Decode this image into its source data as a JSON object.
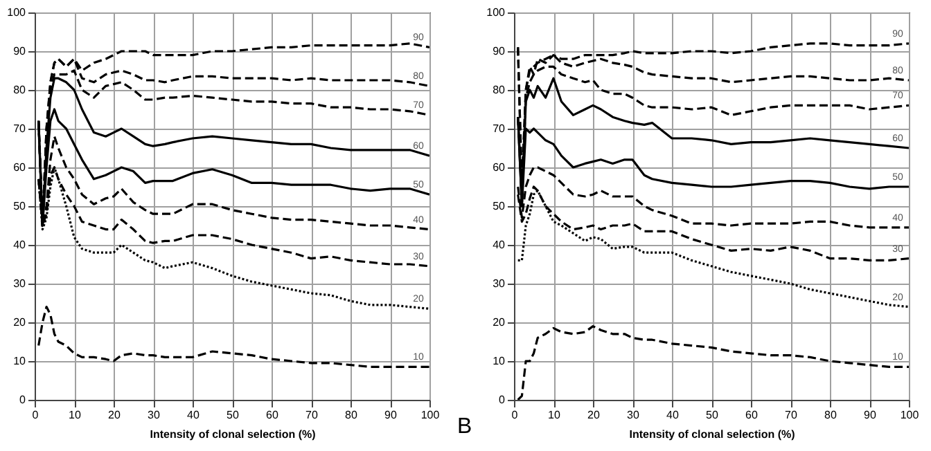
{
  "chart_data": [
    {
      "type": "line",
      "xlabel": "Intensity of clonal selection (%)",
      "x": [
        1,
        2,
        3,
        4,
        5,
        6,
        8,
        10,
        12,
        15,
        18,
        20,
        22,
        25,
        28,
        30,
        33,
        35,
        40,
        45,
        50,
        55,
        60,
        65,
        70,
        75,
        80,
        85,
        90,
        95,
        100
      ],
      "xlim": [
        0,
        100
      ],
      "ylim": [
        0,
        100
      ],
      "xticks": [
        0,
        10,
        20,
        30,
        40,
        50,
        60,
        70,
        80,
        90,
        100
      ],
      "yticks": [
        0,
        10,
        20,
        30,
        40,
        50,
        60,
        70,
        80,
        90,
        100
      ],
      "grid": true,
      "legend": false,
      "marker": "none",
      "series": [
        {
          "name": "90",
          "color": "#000000",
          "line_style": "dashed",
          "values": [
            72,
            45,
            70,
            82,
            87,
            88,
            86,
            88,
            85,
            87,
            88,
            89,
            90,
            90,
            90,
            89,
            89,
            89,
            89,
            90,
            90,
            90.5,
            91,
            91,
            91.5,
            91.5,
            91.5,
            91.5,
            91.5,
            92,
            91
          ]
        },
        {
          "name": "80",
          "color": "#000000",
          "line_style": "dashed",
          "values": [
            72,
            45,
            70,
            82,
            87,
            88,
            86,
            88,
            83,
            82,
            84,
            84.5,
            85,
            84,
            82.5,
            82.5,
            82,
            82.5,
            83.5,
            83.5,
            83,
            83,
            83,
            82.5,
            83,
            82.5,
            82.5,
            82.5,
            82.5,
            82,
            81
          ]
        },
        {
          "name": "70",
          "color": "#000000",
          "line_style": "dashed",
          "values": [
            72,
            45,
            68,
            80,
            84,
            84,
            84,
            85,
            80,
            78,
            81,
            81.5,
            82,
            80,
            77.5,
            77.5,
            78,
            78,
            78.5,
            78,
            77.5,
            77,
            77,
            76.5,
            76.5,
            75.5,
            75.5,
            75,
            75,
            74.5,
            73.5
          ]
        },
        {
          "name": "60",
          "color": "#000000",
          "line_style": "solid",
          "values": [
            72,
            45,
            65,
            78,
            83,
            83,
            82,
            80,
            75,
            69,
            68,
            69,
            70,
            68,
            66,
            65.5,
            66,
            66.5,
            67.5,
            68,
            67.5,
            67,
            66.5,
            66,
            66,
            65,
            64.5,
            64.5,
            64.5,
            64.5,
            63
          ]
        },
        {
          "name": "50",
          "color": "#000000",
          "line_style": "solid",
          "values": [
            71,
            45,
            60,
            72,
            75,
            72,
            70,
            66,
            62,
            57,
            58,
            59,
            60,
            59,
            56,
            56.5,
            56.5,
            56.5,
            58.5,
            59.5,
            58,
            56,
            56,
            55.5,
            55.5,
            55.5,
            54.5,
            54,
            54.5,
            54.5,
            53
          ]
        },
        {
          "name": "40",
          "color": "#000000",
          "line_style": "dashed",
          "values": [
            57,
            45,
            50,
            62,
            68,
            65,
            60,
            57,
            53,
            50.5,
            52,
            52.5,
            54.5,
            51,
            49,
            48,
            48,
            48,
            50.5,
            50.5,
            49,
            48,
            47,
            46.5,
            46.5,
            46,
            45.5,
            45,
            45,
            44.5,
            44
          ]
        },
        {
          "name": "30",
          "color": "#000000",
          "line_style": "dashed",
          "values": [
            57,
            45,
            48,
            58,
            60,
            57,
            53,
            50,
            46,
            45,
            44,
            44,
            46.5,
            44,
            41,
            40.5,
            41,
            41,
            42.5,
            42.5,
            41.5,
            40,
            39,
            38,
            36.5,
            37,
            36,
            35.5,
            35,
            35,
            34.5
          ]
        },
        {
          "name": "20",
          "color": "#000000",
          "line_style": "dotted",
          "values": [
            57,
            44,
            47,
            55,
            60,
            57,
            50,
            42,
            39,
            38,
            38,
            38,
            40,
            38,
            36,
            35.5,
            34,
            34.5,
            35.5,
            34,
            32,
            30.5,
            29.5,
            28.5,
            27.5,
            27,
            25.5,
            24.5,
            24.5,
            24,
            23.5
          ]
        },
        {
          "name": "10",
          "color": "#000000",
          "line_style": "dashed",
          "values": [
            14,
            20,
            24,
            22,
            17,
            15,
            14,
            12,
            11,
            11,
            10.5,
            10,
            11.5,
            12,
            11.5,
            11.5,
            11,
            11,
            11,
            12.5,
            12,
            11.5,
            10.5,
            10,
            9.5,
            9.5,
            9,
            8.5,
            8.5,
            8.5,
            8.5
          ]
        }
      ]
    },
    {
      "type": "line",
      "xlabel": "Intensity of clonal selection (%)",
      "annotations": [
        "B"
      ],
      "x": [
        1,
        2,
        3,
        4,
        5,
        6,
        8,
        10,
        12,
        15,
        18,
        20,
        22,
        25,
        28,
        30,
        33,
        35,
        40,
        45,
        50,
        55,
        60,
        65,
        70,
        75,
        80,
        85,
        90,
        95,
        100
      ],
      "xlim": [
        0,
        100
      ],
      "ylim": [
        0,
        100
      ],
      "xticks": [
        0,
        10,
        20,
        30,
        40,
        50,
        60,
        70,
        80,
        90,
        100
      ],
      "yticks": [
        0,
        10,
        20,
        30,
        40,
        50,
        60,
        70,
        80,
        90,
        100
      ],
      "grid": true,
      "legend": false,
      "marker": "none",
      "series": [
        {
          "name": "90",
          "color": "#000000",
          "line_style": "dashed",
          "values": [
            91,
            55,
            80,
            86,
            84,
            88,
            87,
            89,
            88,
            88,
            89,
            89,
            89,
            89,
            89.5,
            90,
            89.5,
            89.5,
            89.5,
            90,
            90,
            89.5,
            90,
            91,
            91.5,
            92,
            92,
            91.5,
            91.5,
            91.5,
            92
          ]
        },
        {
          "name": "80",
          "color": "#000000",
          "line_style": "dashed",
          "values": [
            91,
            55,
            80,
            85,
            86,
            87,
            88,
            89,
            87,
            86,
            87,
            87.5,
            88,
            87,
            86.5,
            86,
            84.5,
            84,
            83.5,
            83,
            83,
            82,
            82.5,
            83,
            83.5,
            83.5,
            83,
            82.5,
            82.5,
            83,
            82.5
          ]
        },
        {
          "name": "70",
          "color": "#000000",
          "line_style": "dashed",
          "values": [
            73,
            52,
            78,
            82,
            84,
            85,
            86,
            86,
            84,
            83,
            82,
            82.5,
            80,
            79,
            79,
            78,
            76,
            75.5,
            75.5,
            75,
            75.5,
            73.5,
            74.5,
            75.5,
            76,
            76,
            76,
            76,
            75,
            75.5,
            76
          ]
        },
        {
          "name": "60",
          "color": "#000000",
          "line_style": "solid",
          "values": [
            73,
            50,
            77,
            80,
            78,
            81,
            78,
            83,
            77,
            73.5,
            75,
            76,
            75,
            73,
            72,
            71.5,
            71,
            71.5,
            67.5,
            67.5,
            67,
            66,
            66.5,
            66.5,
            67,
            67.5,
            67,
            66.5,
            66,
            65.5,
            65
          ]
        },
        {
          "name": "50",
          "color": "#000000",
          "line_style": "solid",
          "values": [
            73,
            50,
            70,
            69,
            70,
            69,
            67,
            66,
            63,
            60,
            61,
            61.5,
            62,
            61,
            62,
            62,
            58,
            57,
            56,
            55.5,
            55,
            55,
            55.5,
            56,
            56.5,
            56.5,
            56,
            55,
            54.5,
            55,
            55
          ]
        },
        {
          "name": "40",
          "color": "#000000",
          "line_style": "dashed",
          "values": [
            55,
            47,
            55,
            58,
            60,
            60,
            59,
            58,
            56,
            53,
            52.5,
            53,
            54,
            52.5,
            52.5,
            52.5,
            50,
            49,
            47.5,
            45.5,
            45.5,
            45,
            45.5,
            45.5,
            45.5,
            46,
            46,
            45,
            44.5,
            44.5,
            44.5
          ]
        },
        {
          "name": "30",
          "color": "#000000",
          "line_style": "dashed",
          "values": [
            53,
            46,
            48,
            52,
            55,
            54,
            50,
            48,
            46,
            44,
            44.5,
            45,
            44,
            45,
            45,
            45.5,
            43.5,
            43.5,
            43.5,
            41.5,
            40,
            38.5,
            39,
            38.5,
            39.5,
            38.5,
            36.5,
            36.5,
            36,
            36,
            36.5
          ]
        },
        {
          "name": "20",
          "color": "#000000",
          "line_style": "dotted",
          "values": [
            36,
            36,
            45,
            48,
            53,
            54,
            50,
            46,
            45,
            43,
            41,
            42,
            41.5,
            39,
            39.5,
            39.5,
            38,
            38,
            38,
            36,
            34.5,
            33,
            32,
            31,
            30,
            28.5,
            27.5,
            26.5,
            25.5,
            24.5,
            24
          ]
        },
        {
          "name": "10",
          "color": "#000000",
          "line_style": "dashed",
          "values": [
            0,
            1,
            10,
            10,
            12,
            16,
            17,
            18.5,
            17.5,
            17,
            17.5,
            19,
            18,
            17,
            17,
            16,
            15.5,
            15.5,
            14.5,
            14,
            13.5,
            12.5,
            12,
            11.5,
            11.5,
            11,
            10,
            9.5,
            9,
            8.5,
            8.5
          ]
        }
      ]
    }
  ]
}
